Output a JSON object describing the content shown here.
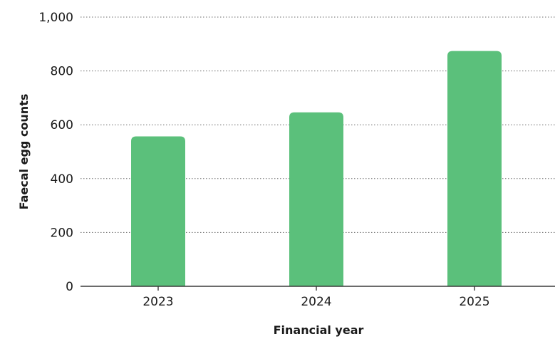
{
  "chart_data": {
    "type": "bar",
    "categories": [
      "2023",
      "2024",
      "2025"
    ],
    "series": [
      {
        "values": [
          557,
          646,
          874
        ]
      }
    ],
    "xlabel": "Financial year",
    "ylabel": "Faecal egg counts",
    "ylim": [
      0,
      1000
    ],
    "yticks": [
      0,
      200,
      400,
      600,
      800,
      1000
    ],
    "ytick_labels": [
      "0",
      "200",
      "400",
      "600",
      "800",
      "1,000"
    ],
    "grid": true,
    "legend": "none",
    "bar_color": "#5bc07b",
    "axis_color": "#3a3a3a",
    "grid_color": "#6b6b6b"
  }
}
